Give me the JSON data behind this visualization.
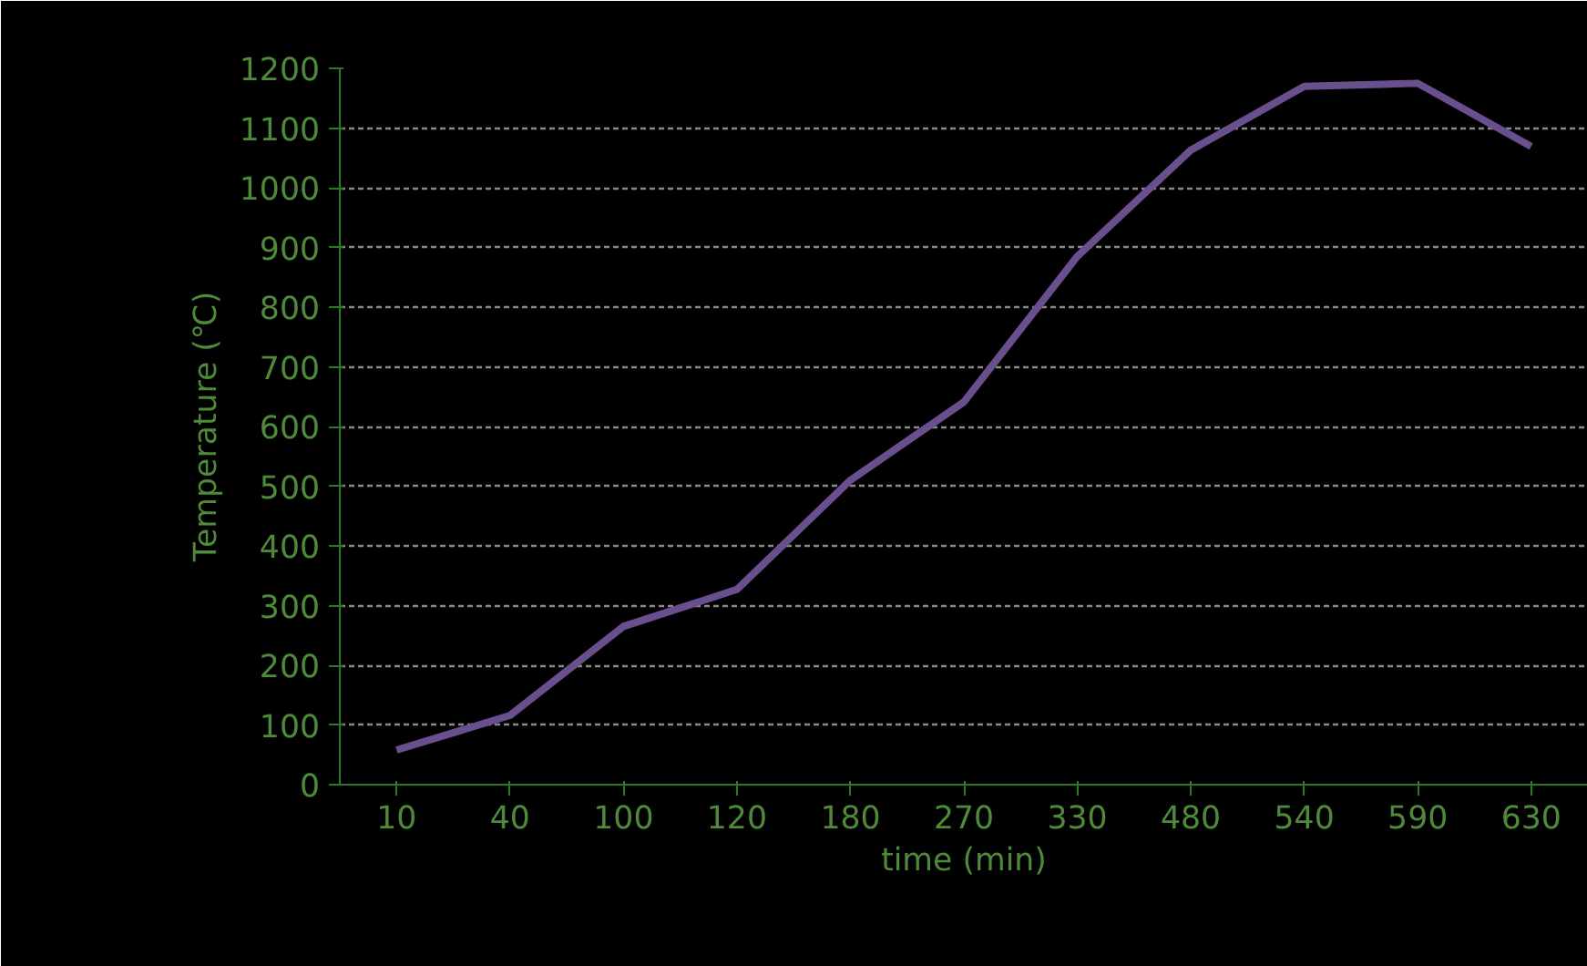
{
  "chart_data": {
    "type": "line",
    "xlabel": "time (min)",
    "ylabel": "Temperature (℃)",
    "categories": [
      "10",
      "40",
      "100",
      "120",
      "180",
      "270",
      "330",
      "480",
      "540",
      "590",
      "630"
    ],
    "series": [
      {
        "color": "#6a4f8f",
        "values": [
          58,
          116,
          265,
          327,
          510,
          641,
          885,
          1063,
          1170,
          1175,
          1069
        ]
      }
    ],
    "ylim": [
      0,
      1200
    ],
    "yticks": [
      0,
      100,
      200,
      300,
      400,
      500,
      600,
      700,
      800,
      900,
      1000,
      1100,
      1200
    ],
    "grid": "y",
    "marker": "none",
    "line_style": "solid"
  }
}
